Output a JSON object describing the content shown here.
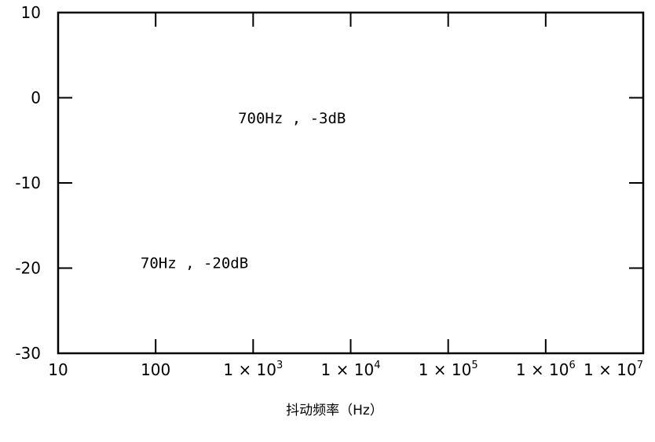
{
  "chart_data": {
    "type": "line",
    "title": "",
    "xlabel": "抖动频率（Hz）",
    "ylabel": "",
    "xscale": "log",
    "xlim": [
      10,
      10000000
    ],
    "ylim": [
      -30,
      10
    ],
    "grid": false,
    "legend": "none",
    "y_ticks": [
      {
        "value": 10,
        "label": "10"
      },
      {
        "value": 0,
        "label": "0"
      },
      {
        "value": -10,
        "label": "-10"
      },
      {
        "value": -20,
        "label": "-20"
      },
      {
        "value": -30,
        "label": "-30"
      }
    ],
    "x_ticks": [
      {
        "value": 10,
        "label": "10"
      },
      {
        "value": 100,
        "label": "100"
      },
      {
        "value": 1000,
        "label": "1 × 10",
        "exponent": "3"
      },
      {
        "value": 10000,
        "label": "1 × 10",
        "exponent": "4"
      },
      {
        "value": 100000,
        "label": "1 × 10",
        "exponent": "5"
      },
      {
        "value": 1000000,
        "label": "1 × 10",
        "exponent": "6"
      },
      {
        "value": 10000000,
        "label": "1 × 10",
        "exponent": "7"
      }
    ],
    "annotations": [
      {
        "text": "700Hz , -3dB",
        "x": 700,
        "y": -3
      },
      {
        "text": "70Hz , -20dB",
        "x": 70,
        "y": -20
      }
    ],
    "series": []
  }
}
